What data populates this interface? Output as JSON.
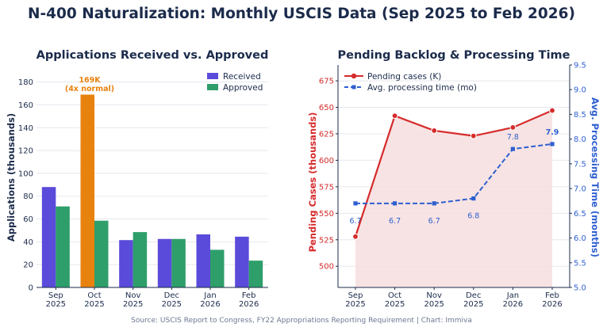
{
  "title": "N-400 Naturalization: Monthly USCIS Data (Sep 2025 to Feb 2026)",
  "source": "Source: USCIS Report to Congress, FY22 Appropriations Reporting Requirement  |  Chart: Immiva",
  "colors": {
    "received": "#5b4bdb",
    "received_highlight": "#e8820f",
    "approved": "#2e9e6a",
    "pending": "#d62b2b",
    "pending_fill": "#f6dede",
    "processing": "#2f5fd0",
    "annotation": "#e8820f",
    "grid": "#e6e8ee"
  },
  "chart_data": [
    {
      "type": "bar",
      "title": "Applications Received vs. Approved",
      "categories": [
        [
          "Sep",
          "2025"
        ],
        [
          "Oct",
          "2025"
        ],
        [
          "Nov",
          "2025"
        ],
        [
          "Dec",
          "2025"
        ],
        [
          "Jan",
          "2026"
        ],
        [
          "Feb",
          "2026"
        ]
      ],
      "series": [
        {
          "name": "Received",
          "values": [
            88,
            169,
            41.5,
            42.5,
            46.5,
            44.5
          ]
        },
        {
          "name": "Approved",
          "values": [
            71,
            58.5,
            48.5,
            42.5,
            33,
            23.5
          ]
        }
      ],
      "ylabel": "Applications (thousands)",
      "ylim": [
        0,
        195
      ],
      "yticks": [
        "0",
        "20",
        "40",
        "60",
        "80",
        "100",
        "120",
        "140",
        "160",
        "180"
      ],
      "annotation": {
        "category_index": 1,
        "lines": [
          "169K",
          "(4x normal)"
        ]
      },
      "legend_position": "top-right",
      "grid": true
    },
    {
      "type": "line",
      "title": "Pending Backlog & Processing Time",
      "categories": [
        [
          "Sep",
          "2025"
        ],
        [
          "Oct",
          "2025"
        ],
        [
          "Nov",
          "2025"
        ],
        [
          "Dec",
          "2025"
        ],
        [
          "Jan",
          "2026"
        ],
        [
          "Feb",
          "2026"
        ]
      ],
      "series": [
        {
          "name": "Pending cases (K)",
          "axis": "left",
          "values": [
            528,
            642,
            628,
            623,
            631,
            647
          ]
        },
        {
          "name": "Avg. processing time (mo)",
          "axis": "right",
          "values": [
            6.7,
            6.7,
            6.7,
            6.8,
            7.8,
            7.9
          ]
        }
      ],
      "processing_labels": [
        "6.7",
        "6.7",
        "6.7",
        "6.8",
        "7.8",
        "7.9"
      ],
      "ylabel_left": "Pending Cases (thousands)",
      "ylabel_right": "Avg. Processing Time (months)",
      "ylim_left": [
        480,
        690
      ],
      "ylim_right": [
        5.0,
        9.5
      ],
      "yticks_left": [
        "500",
        "525",
        "550",
        "575",
        "600",
        "625",
        "650",
        "675"
      ],
      "yticks_right": [
        "5.0",
        "5.5",
        "6.0",
        "6.5",
        "7.0",
        "7.5",
        "8.0",
        "8.5",
        "9.0",
        "9.5"
      ],
      "legend_position": "top-left",
      "grid": true
    }
  ]
}
